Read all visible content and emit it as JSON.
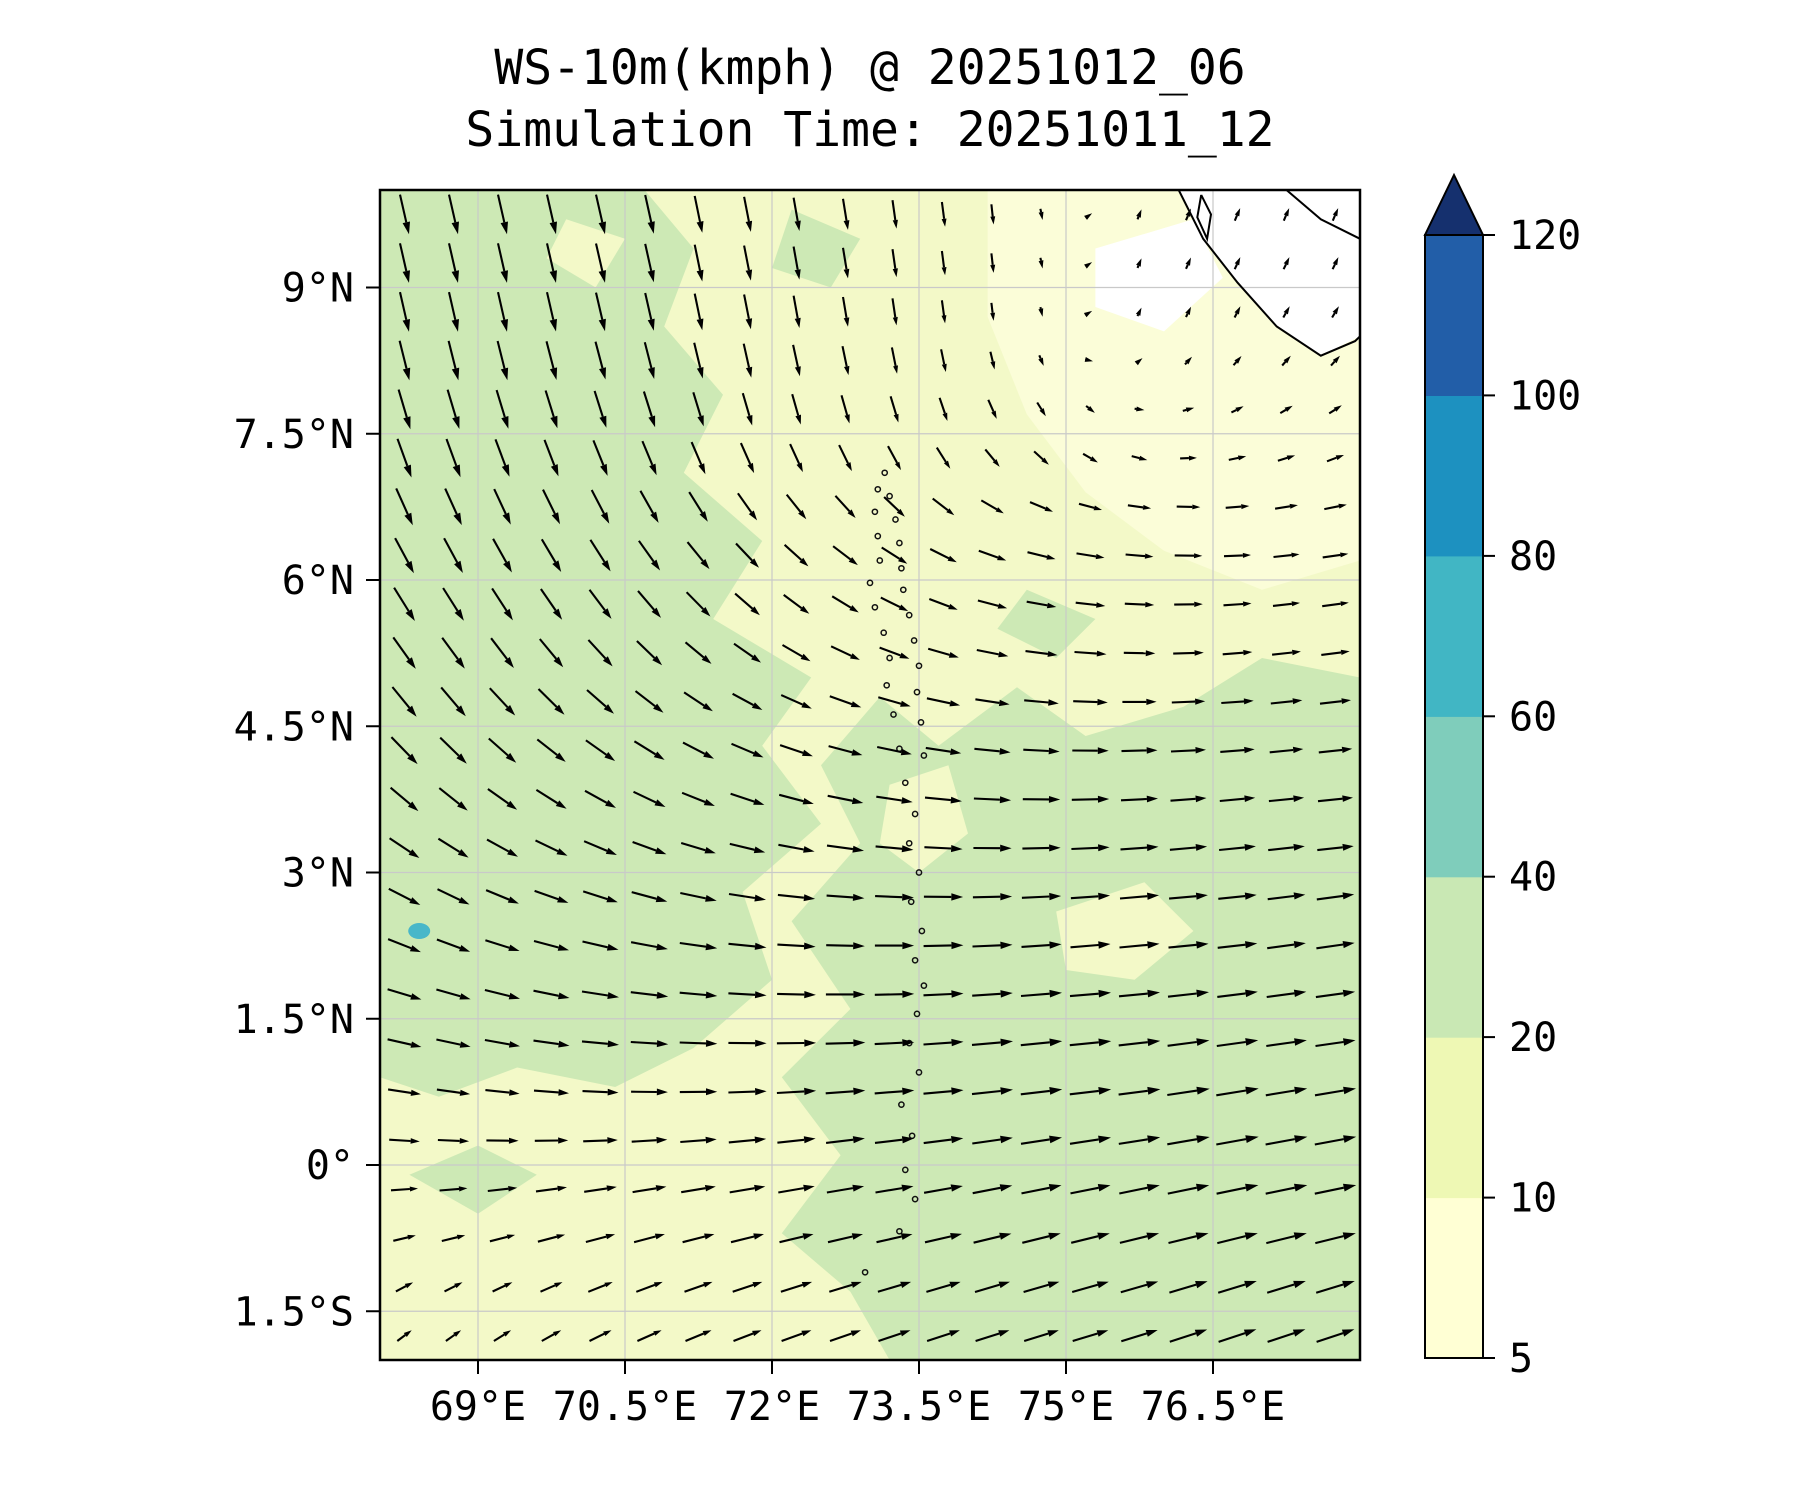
{
  "title": {
    "line1": "WS-10m(kmph) @ 20251012_06",
    "line2": "Simulation Time: 20251011_12"
  },
  "axes": {
    "x_ticks": [
      "69°E",
      "70.5°E",
      "72°E",
      "73.5°E",
      "75°E",
      "76.5°E"
    ],
    "x_values": [
      69,
      70.5,
      72,
      73.5,
      75,
      76.5
    ],
    "y_ticks": [
      "9°N",
      "7.5°N",
      "6°N",
      "4.5°N",
      "3°N",
      "1.5°N",
      "0°",
      "1.5°S"
    ],
    "y_values": [
      9,
      7.5,
      6,
      4.5,
      3,
      1.5,
      0,
      -1.5
    ]
  },
  "colorbar": {
    "tick_labels": [
      "5",
      "10",
      "20",
      "40",
      "60",
      "80",
      "100",
      "120"
    ],
    "tick_values": [
      5,
      10,
      20,
      40,
      60,
      80,
      100,
      120
    ],
    "segment_colors": [
      "#ffffd4",
      "#eef8b4",
      "#c9e8b4",
      "#7fcdbb",
      "#41b6c4",
      "#1d91c0",
      "#225ea8"
    ],
    "extend_color": "#15306e"
  },
  "chart_data": {
    "type": "heatmap",
    "subtype": "filled_contour_wind_speed_with_quiver_overlay",
    "variable": "WS-10m",
    "units": "kmph",
    "valid_time": "20251012_06",
    "simulation_time": "20251011_12",
    "lon_range": [
      68,
      78
    ],
    "lat_range": [
      -2,
      10
    ],
    "colorbar_levels": [
      5,
      10,
      20,
      40,
      60,
      80,
      100,
      120
    ],
    "map_colors": {
      "base": "#f3f9c8",
      "green": "#cde9b5",
      "pale": "#fbfdd8",
      "white": "#ffffff",
      "teal": "#48b7c9"
    },
    "high_wind_spot": {
      "lon": 68.4,
      "lat": 2.4,
      "color": "#48b7c9",
      "level": "40-60"
    },
    "shading_regions": [
      {
        "name": "green-left",
        "level": "20-40",
        "color": "#cde9b5",
        "polygon": [
          [
            68,
            10
          ],
          [
            70.7,
            10
          ],
          [
            71.2,
            9.4
          ],
          [
            70.9,
            8.6
          ],
          [
            71.5,
            7.9
          ],
          [
            71.1,
            7.1
          ],
          [
            71.9,
            6.4
          ],
          [
            71.4,
            5.6
          ],
          [
            72.4,
            5.0
          ],
          [
            71.9,
            4.3
          ],
          [
            72.5,
            3.5
          ],
          [
            71.7,
            2.8
          ],
          [
            72.0,
            1.9
          ],
          [
            71.2,
            1.2
          ],
          [
            70.4,
            0.8
          ],
          [
            69.4,
            1.0
          ],
          [
            68.6,
            0.7
          ],
          [
            68,
            0.9
          ]
        ]
      },
      {
        "name": "green-right-bottom",
        "level": "20-40",
        "color": "#cde9b5",
        "polygon": [
          [
            78,
            5.0
          ],
          [
            77.0,
            5.2
          ],
          [
            76.2,
            4.7
          ],
          [
            75.2,
            4.4
          ],
          [
            74.5,
            4.9
          ],
          [
            73.7,
            4.3
          ],
          [
            73.1,
            4.8
          ],
          [
            72.5,
            4.1
          ],
          [
            72.9,
            3.3
          ],
          [
            72.2,
            2.5
          ],
          [
            72.8,
            1.6
          ],
          [
            72.1,
            0.9
          ],
          [
            72.7,
            0.1
          ],
          [
            72.1,
            -0.7
          ],
          [
            72.8,
            -1.3
          ],
          [
            73.2,
            -2
          ],
          [
            78,
            -2
          ]
        ]
      },
      {
        "name": "green-top-center-patch",
        "level": "20-40",
        "color": "#cde9b5",
        "polygon": [
          [
            72.2,
            9.8
          ],
          [
            72.9,
            9.5
          ],
          [
            72.6,
            9.0
          ],
          [
            72.0,
            9.2
          ]
        ]
      },
      {
        "name": "green-midright-spur",
        "level": "20-40",
        "color": "#cde9b5",
        "polygon": [
          [
            74.6,
            5.9
          ],
          [
            75.3,
            5.6
          ],
          [
            74.9,
            5.2
          ],
          [
            74.3,
            5.5
          ]
        ]
      },
      {
        "name": "green-bottomleft-patch",
        "level": "20-40",
        "color": "#cde9b5",
        "polygon": [
          [
            68.3,
            -0.1
          ],
          [
            69.0,
            0.2
          ],
          [
            69.6,
            -0.1
          ],
          [
            69.0,
            -0.5
          ]
        ]
      },
      {
        "name": "pale-pocket-topleft",
        "level": "10-20",
        "color": "#f3f9c8",
        "polygon": [
          [
            69.9,
            9.7
          ],
          [
            70.5,
            9.5
          ],
          [
            70.2,
            9.0
          ],
          [
            69.7,
            9.3
          ]
        ]
      },
      {
        "name": "pale-topright",
        "level": "5-10",
        "color": "#fbfdd8",
        "polygon": [
          [
            74.2,
            10
          ],
          [
            78,
            10
          ],
          [
            78,
            6.2
          ],
          [
            77.0,
            5.9
          ],
          [
            76.0,
            6.3
          ],
          [
            75.2,
            6.9
          ],
          [
            74.6,
            7.7
          ],
          [
            74.2,
            8.7
          ]
        ]
      },
      {
        "name": "white-offshore-patch",
        "level": "<5",
        "color": "#ffffff",
        "polygon": [
          [
            75.3,
            9.4
          ],
          [
            76.3,
            9.7
          ],
          [
            76.6,
            9.1
          ],
          [
            76.0,
            8.55
          ],
          [
            75.3,
            8.8
          ]
        ]
      },
      {
        "name": "pale-pocket-right",
        "level": "10-20",
        "color": "#f3f9c8",
        "polygon": [
          [
            74.9,
            2.6
          ],
          [
            75.8,
            2.9
          ],
          [
            76.3,
            2.4
          ],
          [
            75.7,
            1.9
          ],
          [
            75.0,
            2.0
          ]
        ]
      },
      {
        "name": "pale-pocket-maldives",
        "level": "10-20",
        "color": "#f3f9c8",
        "polygon": [
          [
            73.2,
            3.9
          ],
          [
            73.8,
            4.1
          ],
          [
            74.0,
            3.4
          ],
          [
            73.5,
            3.0
          ],
          [
            73.1,
            3.3
          ]
        ]
      }
    ],
    "land_polygons": [
      [
        [
          76.15,
          10
        ],
        [
          78,
          10
        ],
        [
          78,
          8.5
        ],
        [
          77.6,
          8.3
        ],
        [
          77.15,
          8.6
        ],
        [
          76.75,
          9.05
        ],
        [
          76.4,
          9.5
        ]
      ]
    ],
    "coastlines": [
      [
        [
          76.15,
          10
        ],
        [
          76.4,
          9.5
        ],
        [
          76.75,
          9.05
        ],
        [
          77.15,
          8.6
        ],
        [
          77.6,
          8.3
        ],
        [
          77.95,
          8.45
        ],
        [
          78,
          8.5
        ]
      ],
      [
        [
          77.25,
          10
        ],
        [
          77.6,
          9.7
        ],
        [
          78,
          9.5
        ]
      ],
      [
        [
          76.38,
          9.95
        ],
        [
          76.48,
          9.75
        ],
        [
          76.44,
          9.5
        ],
        [
          76.34,
          9.72
        ],
        [
          76.38,
          9.95
        ]
      ]
    ],
    "islands": [
      [
        73.15,
        7.1
      ],
      [
        73.08,
        6.93
      ],
      [
        73.2,
        6.86
      ],
      [
        73.05,
        6.7
      ],
      [
        73.26,
        6.62
      ],
      [
        73.08,
        6.45
      ],
      [
        73.3,
        6.38
      ],
      [
        73.1,
        6.2
      ],
      [
        73.32,
        6.12
      ],
      [
        73.0,
        5.97
      ],
      [
        73.34,
        5.9
      ],
      [
        73.05,
        5.72
      ],
      [
        73.4,
        5.64
      ],
      [
        73.14,
        5.46
      ],
      [
        73.45,
        5.38
      ],
      [
        73.2,
        5.2
      ],
      [
        73.5,
        5.12
      ],
      [
        73.17,
        4.92
      ],
      [
        73.48,
        4.85
      ],
      [
        73.24,
        4.62
      ],
      [
        73.52,
        4.54
      ],
      [
        73.3,
        4.27
      ],
      [
        73.55,
        4.2
      ],
      [
        73.36,
        3.92
      ],
      [
        73.46,
        3.6
      ],
      [
        73.4,
        3.3
      ],
      [
        73.5,
        3.0
      ],
      [
        73.42,
        2.7
      ],
      [
        73.53,
        2.4
      ],
      [
        73.46,
        2.1
      ],
      [
        73.55,
        1.84
      ],
      [
        73.48,
        1.55
      ],
      [
        73.4,
        1.25
      ],
      [
        73.5,
        0.95
      ],
      [
        73.32,
        0.62
      ],
      [
        73.43,
        0.3
      ],
      [
        73.36,
        -0.05
      ],
      [
        73.46,
        -0.35
      ],
      [
        73.3,
        -0.68
      ],
      [
        72.95,
        -1.1
      ]
    ],
    "wind_grid": {
      "lons": [
        68.5,
        69.5,
        70.5,
        71.5,
        72.5,
        73.5,
        74.5,
        75.5,
        76.5,
        77.5
      ],
      "lats": [
        9.5,
        8.5,
        7.5,
        6.5,
        5.5,
        4.5,
        3.5,
        2.5,
        1.5,
        0.5,
        -0.5,
        -1.5
      ],
      "uv": [
        [
          [
            5,
            -22
          ],
          [
            5,
            -22
          ],
          [
            5,
            -22
          ],
          [
            4,
            -20
          ],
          [
            3,
            -18
          ],
          [
            2,
            -15
          ],
          [
            1,
            -10
          ],
          [
            2,
            5
          ],
          [
            3,
            7
          ],
          [
            3,
            7
          ]
        ],
        [
          [
            5,
            -22
          ],
          [
            5,
            -22
          ],
          [
            5,
            -21
          ],
          [
            4,
            -20
          ],
          [
            3,
            -17
          ],
          [
            2,
            -14
          ],
          [
            1,
            -8
          ],
          [
            2,
            4
          ],
          [
            3,
            6
          ],
          [
            4,
            6
          ]
        ],
        [
          [
            7,
            -22
          ],
          [
            7,
            -21
          ],
          [
            7,
            -20
          ],
          [
            6,
            -18
          ],
          [
            5,
            -16
          ],
          [
            5,
            -14
          ],
          [
            6,
            -10
          ],
          [
            6,
            -4
          ],
          [
            8,
            2
          ],
          [
            8,
            4
          ]
        ],
        [
          [
            10,
            -20
          ],
          [
            10,
            -19
          ],
          [
            11,
            -18
          ],
          [
            12,
            -15
          ],
          [
            13,
            -12
          ],
          [
            14,
            -9
          ],
          [
            15,
            -5
          ],
          [
            15,
            -2
          ],
          [
            15,
            0
          ],
          [
            14,
            2
          ]
        ],
        [
          [
            12,
            -18
          ],
          [
            12,
            -17
          ],
          [
            13,
            -15
          ],
          [
            14,
            -12
          ],
          [
            15,
            -9
          ],
          [
            16,
            -6
          ],
          [
            17,
            -3
          ],
          [
            17,
            -1
          ],
          [
            16,
            1
          ],
          [
            15,
            2
          ]
        ],
        [
          [
            14,
            -16
          ],
          [
            15,
            -14
          ],
          [
            16,
            -12
          ],
          [
            17,
            -9
          ],
          [
            18,
            -6
          ],
          [
            19,
            -4
          ],
          [
            20,
            -2
          ],
          [
            20,
            0
          ],
          [
            19,
            1
          ],
          [
            18,
            2
          ]
        ],
        [
          [
            16,
            -12
          ],
          [
            17,
            -10
          ],
          [
            18,
            -8
          ],
          [
            19,
            -6
          ],
          [
            20,
            -4
          ],
          [
            21,
            -2
          ],
          [
            21,
            0
          ],
          [
            21,
            1
          ],
          [
            20,
            2
          ],
          [
            20,
            2
          ]
        ],
        [
          [
            18,
            -8
          ],
          [
            19,
            -6
          ],
          [
            20,
            -5
          ],
          [
            21,
            -3
          ],
          [
            21,
            -1
          ],
          [
            22,
            0
          ],
          [
            22,
            1
          ],
          [
            22,
            2
          ],
          [
            22,
            2
          ],
          [
            21,
            3
          ]
        ],
        [
          [
            19,
            -5
          ],
          [
            20,
            -4
          ],
          [
            21,
            -2
          ],
          [
            21,
            -1
          ],
          [
            22,
            0
          ],
          [
            22,
            1
          ],
          [
            23,
            2
          ],
          [
            23,
            2
          ],
          [
            23,
            3
          ],
          [
            22,
            3
          ]
        ],
        [
          [
            18,
            -2
          ],
          [
            19,
            -1
          ],
          [
            20,
            0
          ],
          [
            21,
            1
          ],
          [
            22,
            2
          ],
          [
            22,
            2
          ],
          [
            23,
            3
          ],
          [
            23,
            3
          ],
          [
            24,
            4
          ],
          [
            23,
            4
          ]
        ],
        [
          [
            14,
            2
          ],
          [
            16,
            3
          ],
          [
            18,
            4
          ],
          [
            19,
            4
          ],
          [
            20,
            4
          ],
          [
            21,
            4
          ],
          [
            22,
            5
          ],
          [
            22,
            5
          ],
          [
            23,
            5
          ],
          [
            23,
            5
          ]
        ],
        [
          [
            8,
            6
          ],
          [
            10,
            6
          ],
          [
            13,
            6
          ],
          [
            15,
            6
          ],
          [
            17,
            6
          ],
          [
            18,
            6
          ],
          [
            19,
            6
          ],
          [
            20,
            6
          ],
          [
            21,
            7
          ],
          [
            21,
            7
          ]
        ]
      ]
    }
  }
}
